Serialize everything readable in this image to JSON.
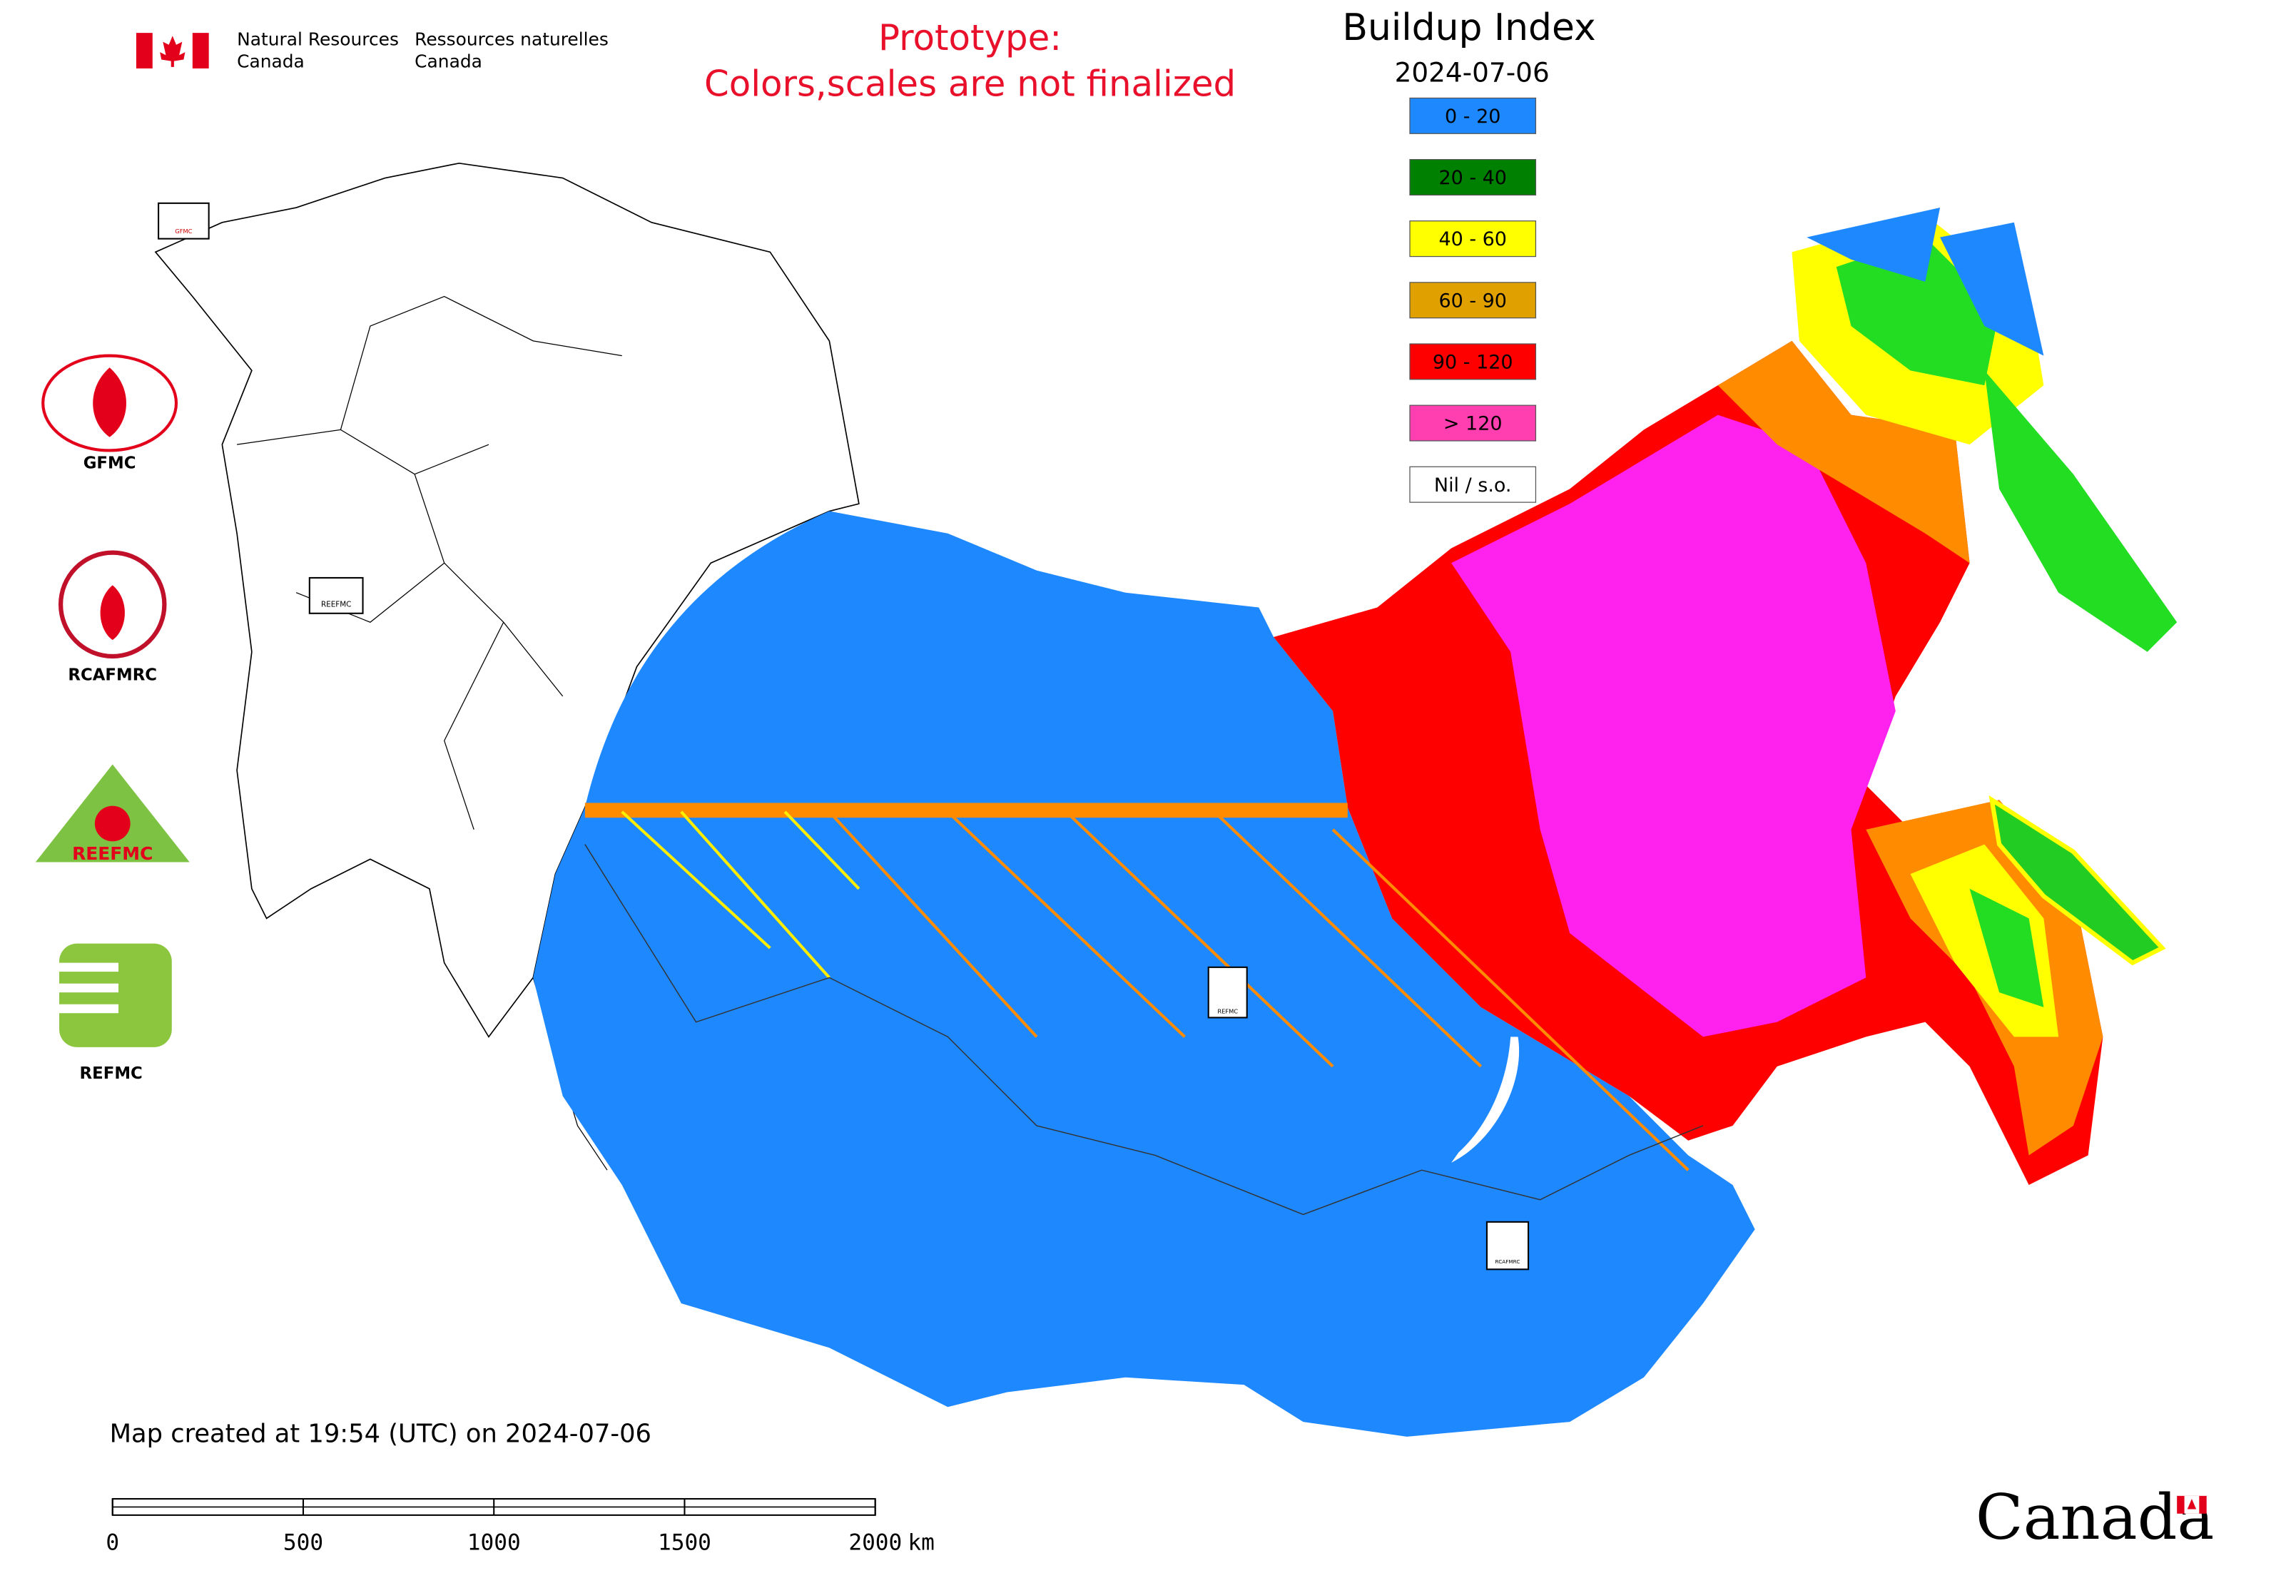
{
  "header": {
    "agency_en": [
      "Natural Resources",
      "Canada"
    ],
    "agency_fr": [
      "Ressources naturelles",
      "Canada"
    ]
  },
  "notice": [
    "Prototype:",
    "Colors,scales are not finalized"
  ],
  "legend": {
    "title": "Buildup Index",
    "date": "2024-07-06",
    "items": [
      {
        "label": "0 - 20",
        "color": "#1e88ff"
      },
      {
        "label": "20 - 40",
        "color": "#008000"
      },
      {
        "label": "40 - 60",
        "color": "#ffff00"
      },
      {
        "label": "60 - 90",
        "color": "#e0a000"
      },
      {
        "label": "90 - 120",
        "color": "#ff0000"
      },
      {
        "label": "> 120",
        "color": "#ff3fb0"
      },
      {
        "label": "Nil / s.o.",
        "color": "#ffffff"
      }
    ]
  },
  "logos": [
    "GFMC",
    "RCAFMRC",
    "REEFMC",
    "REFMC"
  ],
  "footer": {
    "created": "Map created at 19:54 (UTC) on 2024-07-06",
    "wordmark": "Canada"
  },
  "scale_bar": {
    "ticks": [
      0,
      500,
      1000,
      1500,
      2000
    ],
    "unit": "km"
  }
}
